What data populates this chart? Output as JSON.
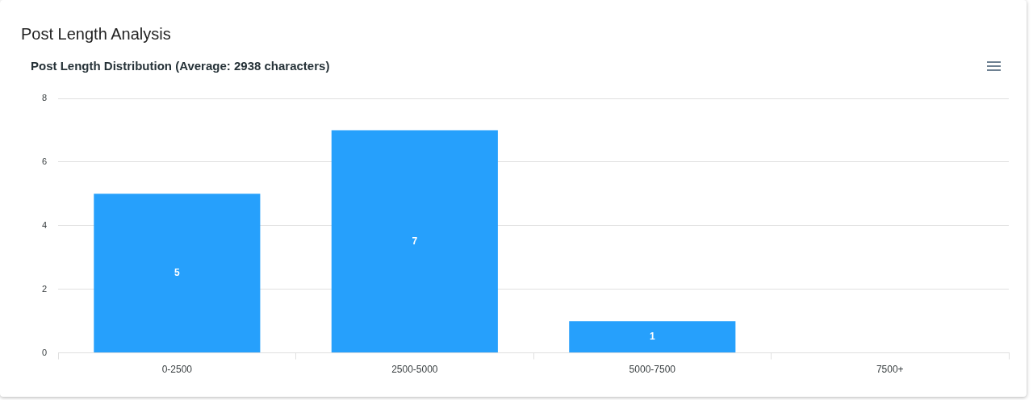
{
  "chart_data": {
    "type": "bar",
    "title": "Post Length Analysis",
    "subtitle": "Post Length Distribution (Average: 2938 characters)",
    "categories": [
      "0-2500",
      "2500-5000",
      "5000-7500",
      "7500+"
    ],
    "values": [
      5,
      7,
      1,
      0
    ],
    "value_labels": [
      "5",
      "7",
      "1",
      null
    ],
    "color": "#26a0fc",
    "ylim": [
      0,
      8
    ],
    "yticks": [
      0,
      2,
      4,
      6,
      8
    ],
    "grid": "y",
    "legend": false
  }
}
